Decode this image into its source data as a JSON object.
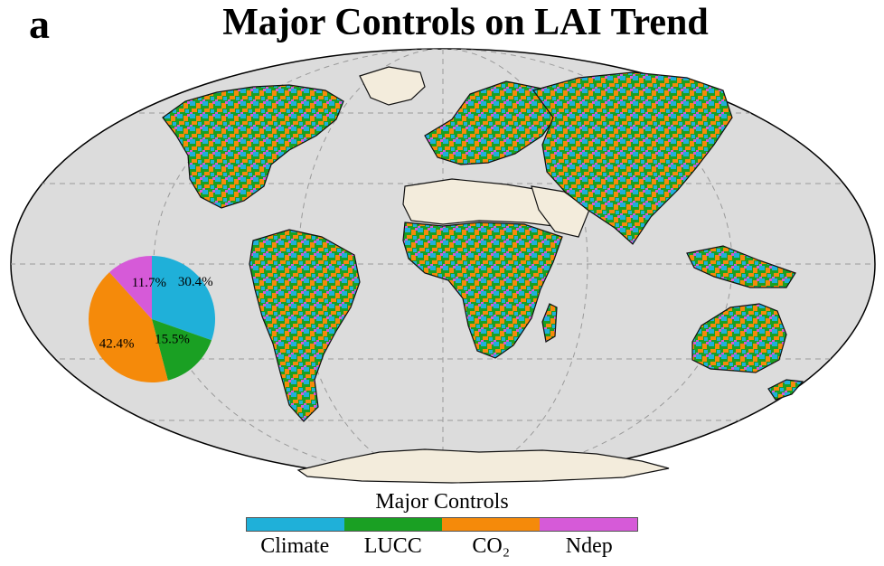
{
  "panel_label": "a",
  "title": "Major Controls on LAI Trend",
  "legend": {
    "title": "Major Controls",
    "items": [
      {
        "label": "Climate",
        "color": "#1fb0d9"
      },
      {
        "label": "LUCC",
        "color": "#1aa023"
      },
      {
        "label": "CO₂",
        "color": "#f58a0a"
      },
      {
        "label": "Ndep",
        "color": "#d65ad8"
      }
    ]
  },
  "colors": {
    "ocean": "#dcdcdc",
    "no_data_land": "#f3ecdc",
    "graticule": "#9a9a9a",
    "coast": "#111111"
  },
  "chart_data": {
    "type": "pie",
    "categories": [
      "Climate",
      "LUCC",
      "CO₂",
      "Ndep"
    ],
    "values": [
      30.4,
      15.5,
      42.4,
      11.7
    ],
    "labels": [
      "30.4%",
      "15.5%",
      "42.4%",
      "11.7%"
    ],
    "colors": [
      "#1fb0d9",
      "#1aa023",
      "#f58a0a",
      "#d65ad8"
    ],
    "start_angle_deg": 90,
    "direction": "clockwise"
  }
}
